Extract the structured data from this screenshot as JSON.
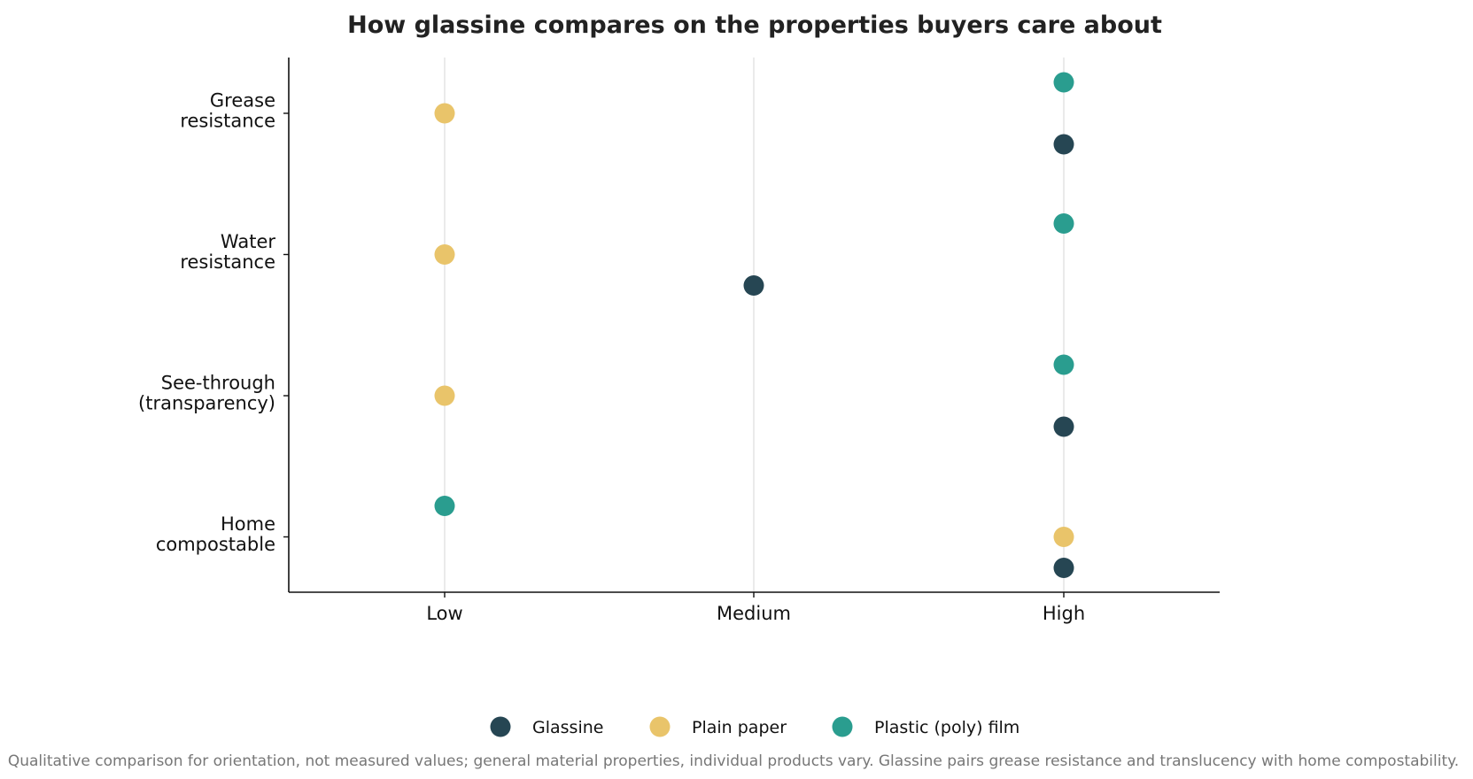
{
  "chart_data": {
    "type": "scatter",
    "title": "How glassine compares on the properties buyers care about",
    "categories": [
      "Grease\nresistance",
      "Water\nresistance",
      "See-through\n(transparency)",
      "Home\ncompostable"
    ],
    "levels": [
      "Low",
      "Medium",
      "High"
    ],
    "series": [
      {
        "name": "Glassine",
        "color": "#264653",
        "values": [
          "High",
          "Medium",
          "High",
          "High"
        ]
      },
      {
        "name": "Plain paper",
        "color": "#e9c46a",
        "values": [
          "Low",
          "Low",
          "Low",
          "High"
        ]
      },
      {
        "name": "Plastic (poly) film",
        "color": "#2a9d8f",
        "values": [
          "High",
          "High",
          "High",
          "Low"
        ]
      }
    ],
    "grid": "vertical",
    "legend_position": "bottom",
    "footnote": "Qualitative comparison for orientation, not measured values; general material properties, individual products vary. Glassine pairs grease resistance and translucency with home compostability."
  }
}
